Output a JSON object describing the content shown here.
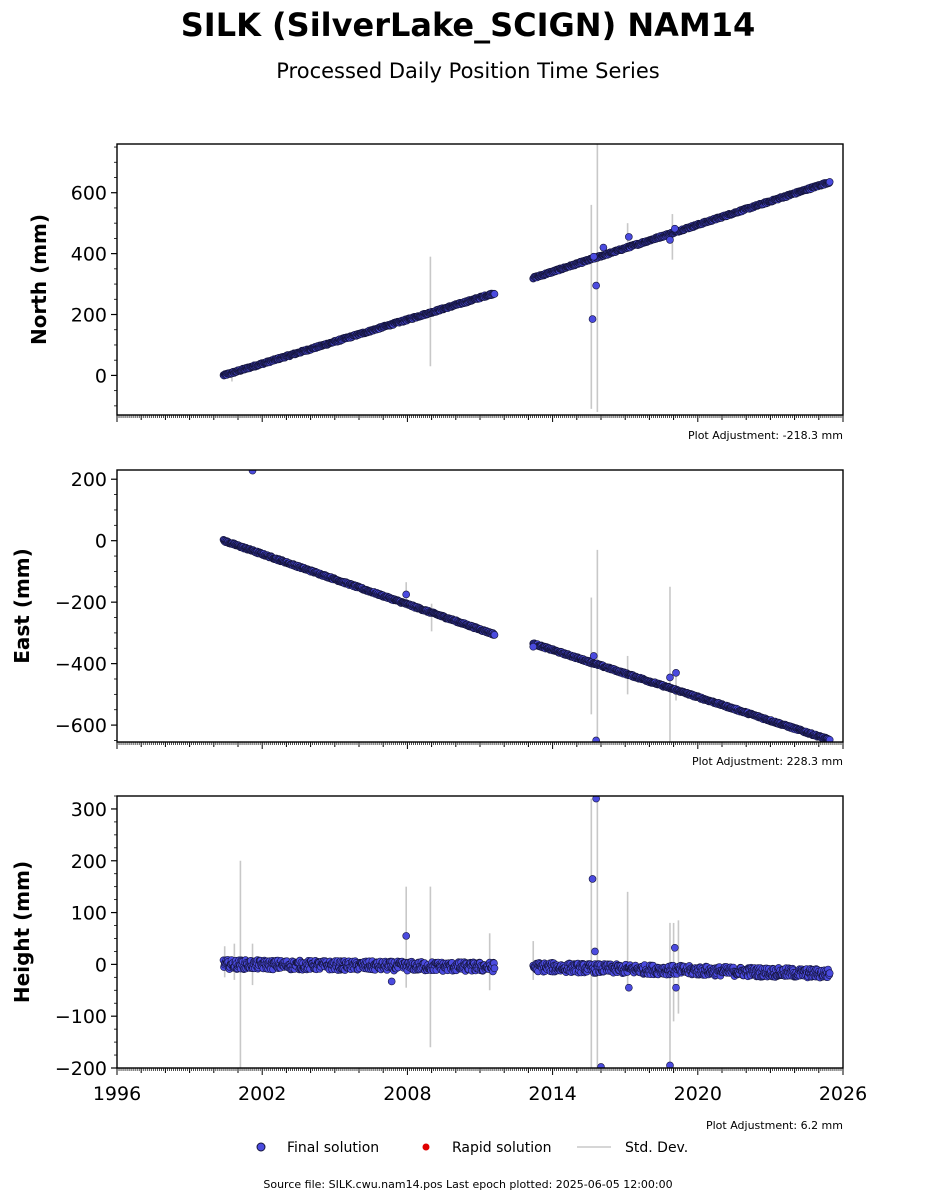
{
  "title": "SILK (SilverLake_SCIGN) NAM14",
  "subtitle": "Processed Daily Position Time Series",
  "footer": "Source file: SILK.cwu.nam14.pos  Last epoch plotted: 2025-06-05 12:00:00",
  "legend": {
    "final": "Final solution",
    "rapid": "Rapid solution",
    "std": "Std. Dev."
  },
  "colors": {
    "final_fill": "#4b4bdf",
    "final_edge": "#14143a",
    "rapid": "#e00000",
    "stddev": "#c8c8c8"
  },
  "chart_data": [
    {
      "type": "scatter",
      "ylabel": "North (mm)",
      "adjustment": "Plot Adjustment: -218.3 mm",
      "xlim": [
        1996,
        2026
      ],
      "ylim": [
        -130,
        760
      ],
      "yticks": [
        0,
        200,
        400,
        600
      ],
      "xtick_labels_shown": false,
      "segments": [
        {
          "x": [
            2000.4,
            2011.6
          ],
          "y": [
            0,
            270
          ]
        },
        {
          "x": [
            2013.2,
            2025.45
          ],
          "y": [
            320,
            635
          ]
        }
      ],
      "outliers": [
        {
          "x": 2015.65,
          "y": 185
        },
        {
          "x": 2015.7,
          "y": 390
        },
        {
          "x": 2015.8,
          "y": 295
        },
        {
          "x": 2016.1,
          "y": 420
        },
        {
          "x": 2017.15,
          "y": 455
        },
        {
          "x": 2018.85,
          "y": 445
        },
        {
          "x": 2019.05,
          "y": 482
        }
      ],
      "stddev_bars": [
        {
          "x": 2000.75,
          "lo": -20,
          "hi": 20
        },
        {
          "x": 2008.95,
          "lo": 30,
          "hi": 390
        },
        {
          "x": 2015.6,
          "lo": -110,
          "hi": 560
        },
        {
          "x": 2015.85,
          "lo": -120,
          "hi": 760
        },
        {
          "x": 2017.1,
          "lo": 415,
          "hi": 500
        },
        {
          "x": 2018.95,
          "lo": 380,
          "hi": 530
        }
      ]
    },
    {
      "type": "scatter",
      "ylabel": "East (mm)",
      "adjustment": "Plot Adjustment: 228.3 mm",
      "xlim": [
        1996,
        2026
      ],
      "ylim": [
        -655,
        230
      ],
      "yticks": [
        -600,
        -400,
        -200,
        0,
        200
      ],
      "xtick_labels_shown": false,
      "segments": [
        {
          "x": [
            2000.4,
            2011.6
          ],
          "y": [
            0,
            -305
          ]
        },
        {
          "x": [
            2013.2,
            2025.45
          ],
          "y": [
            -335,
            -648
          ]
        }
      ],
      "outliers": [
        {
          "x": 2001.6,
          "y": 228
        },
        {
          "x": 2007.95,
          "y": -175
        },
        {
          "x": 2013.2,
          "y": -345
        },
        {
          "x": 2015.7,
          "y": -375
        },
        {
          "x": 2015.8,
          "y": -650
        },
        {
          "x": 2018.85,
          "y": -445
        },
        {
          "x": 2019.1,
          "y": -430
        }
      ],
      "stddev_bars": [
        {
          "x": 2007.95,
          "lo": -220,
          "hi": -135
        },
        {
          "x": 2009.0,
          "lo": -295,
          "hi": -205
        },
        {
          "x": 2015.6,
          "lo": -565,
          "hi": -185
        },
        {
          "x": 2015.85,
          "lo": -655,
          "hi": -30
        },
        {
          "x": 2017.1,
          "lo": -500,
          "hi": -375
        },
        {
          "x": 2018.85,
          "lo": -655,
          "hi": -150
        },
        {
          "x": 2019.1,
          "lo": -520,
          "hi": -425
        }
      ]
    },
    {
      "type": "scatter",
      "ylabel": "Height (mm)",
      "adjustment": "Plot Adjustment: 6.2 mm",
      "xlim": [
        1996,
        2026
      ],
      "ylim": [
        -200,
        325
      ],
      "yticks": [
        -200,
        -100,
        0,
        100,
        200,
        300
      ],
      "xticks": [
        1996,
        2002,
        2008,
        2014,
        2020,
        2026
      ],
      "xtick_labels_shown": true,
      "segments": [
        {
          "x": [
            2000.4,
            2011.6
          ],
          "y": [
            0,
            -5
          ]
        },
        {
          "x": [
            2013.2,
            2025.45
          ],
          "y": [
            -5,
            -18
          ]
        }
      ],
      "outliers": [
        {
          "x": 2007.95,
          "y": 55
        },
        {
          "x": 2007.35,
          "y": -33
        },
        {
          "x": 2015.65,
          "y": 165
        },
        {
          "x": 2015.8,
          "y": 320
        },
        {
          "x": 2015.75,
          "y": 25
        },
        {
          "x": 2016.0,
          "y": -198
        },
        {
          "x": 2017.15,
          "y": -45
        },
        {
          "x": 2018.85,
          "y": -195
        },
        {
          "x": 2019.05,
          "y": 32
        },
        {
          "x": 2019.1,
          "y": -45
        }
      ],
      "stddev_bars": [
        {
          "x": 2000.45,
          "lo": -25,
          "hi": 35
        },
        {
          "x": 2000.85,
          "lo": -30,
          "hi": 40
        },
        {
          "x": 2001.1,
          "lo": -200,
          "hi": 200
        },
        {
          "x": 2001.6,
          "lo": -40,
          "hi": 40
        },
        {
          "x": 2007.95,
          "lo": -45,
          "hi": 150
        },
        {
          "x": 2008.95,
          "lo": -160,
          "hi": 150
        },
        {
          "x": 2011.4,
          "lo": -50,
          "hi": 60
        },
        {
          "x": 2013.2,
          "lo": -30,
          "hi": 45
        },
        {
          "x": 2015.6,
          "lo": -200,
          "hi": 320
        },
        {
          "x": 2015.85,
          "lo": -200,
          "hi": 325
        },
        {
          "x": 2017.1,
          "lo": -50,
          "hi": 140
        },
        {
          "x": 2018.85,
          "lo": -200,
          "hi": 80
        },
        {
          "x": 2019.0,
          "lo": -110,
          "hi": 80
        },
        {
          "x": 2019.2,
          "lo": -95,
          "hi": 85
        }
      ]
    }
  ]
}
